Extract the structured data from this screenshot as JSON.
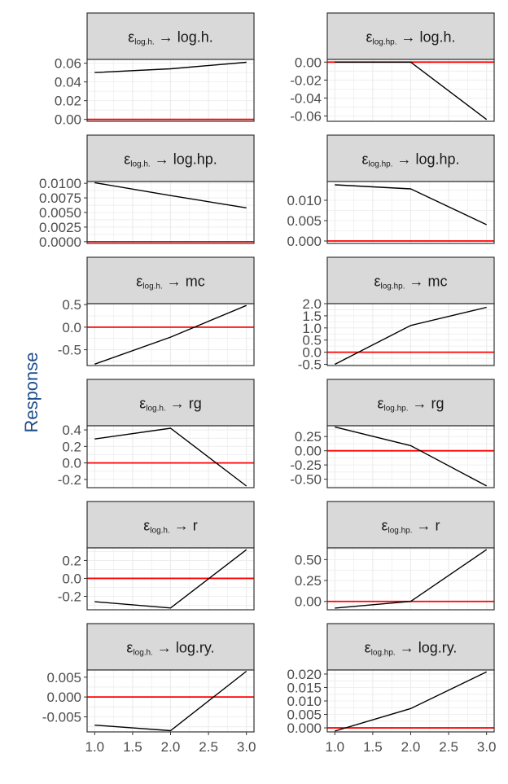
{
  "figure": {
    "ylabel": "Response",
    "x_ticks": [
      "1.0",
      "1.5",
      "2.0",
      "2.5",
      "3.0"
    ],
    "zero_line_color": "#ff0000",
    "line_color": "#000000",
    "strip_fill": "#d9d9d9"
  },
  "chart_data": [
    {
      "type": "line",
      "shock": "log.h.",
      "variable": "log.h.",
      "x": [
        1,
        2,
        3
      ],
      "values": [
        0.05,
        0.054,
        0.061
      ],
      "ylim": [
        -0.002,
        0.064
      ],
      "y_ticks": [
        0.0,
        0.02,
        0.04,
        0.06
      ],
      "y_tick_labels": [
        "0.00",
        "0.02",
        "0.04",
        "0.06"
      ],
      "grid": true
    },
    {
      "type": "line",
      "shock": "log.hp.",
      "variable": "log.h.",
      "x": [
        1,
        2,
        3
      ],
      "values": [
        0.0,
        0.0,
        -0.064
      ],
      "ylim": [
        -0.066,
        0.003
      ],
      "y_ticks": [
        0.0,
        -0.02,
        -0.04,
        -0.06
      ],
      "y_tick_labels": [
        "0.00",
        "-0.02",
        "-0.04",
        "-0.06"
      ],
      "grid": true
    },
    {
      "type": "line",
      "shock": "log.h.",
      "variable": "log.hp.",
      "x": [
        1,
        2,
        3
      ],
      "values": [
        0.0101,
        0.0079,
        0.0058
      ],
      "ylim": [
        -0.0003,
        0.0103
      ],
      "y_ticks": [
        0.0,
        0.0025,
        0.005,
        0.0075,
        0.01
      ],
      "y_tick_labels": [
        "0.0000",
        "0.0025",
        "0.0050",
        "0.0075",
        "0.0100"
      ],
      "grid": true
    },
    {
      "type": "line",
      "shock": "log.hp.",
      "variable": "log.hp.",
      "x": [
        1,
        2,
        3
      ],
      "values": [
        0.0138,
        0.0128,
        0.004
      ],
      "ylim": [
        -0.0006,
        0.0146
      ],
      "y_ticks": [
        0.0,
        0.005,
        0.01
      ],
      "y_tick_labels": [
        "0.000",
        "0.005",
        "0.010"
      ],
      "grid": true
    },
    {
      "type": "line",
      "shock": "log.h.",
      "variable": "mc",
      "x": [
        1,
        2,
        3
      ],
      "values": [
        -0.82,
        -0.22,
        0.48
      ],
      "ylim": [
        -0.85,
        0.52
      ],
      "y_ticks": [
        -0.5,
        0.0,
        0.5
      ],
      "y_tick_labels": [
        "-0.5",
        "0.0",
        "0.5"
      ],
      "grid": true
    },
    {
      "type": "line",
      "shock": "log.hp.",
      "variable": "mc",
      "x": [
        1,
        2,
        3
      ],
      "values": [
        -0.5,
        1.1,
        1.85
      ],
      "ylim": [
        -0.55,
        2.0
      ],
      "y_ticks": [
        -0.5,
        0.0,
        0.5,
        1.0,
        1.5,
        2.0
      ],
      "y_tick_labels": [
        "-0.5",
        "0.0",
        "0.5",
        "1.0",
        "1.5",
        "2.0"
      ],
      "grid": true
    },
    {
      "type": "line",
      "shock": "log.h.",
      "variable": "rg",
      "x": [
        1,
        2,
        3
      ],
      "values": [
        0.29,
        0.42,
        -0.28
      ],
      "ylim": [
        -0.3,
        0.45
      ],
      "y_ticks": [
        -0.2,
        0.0,
        0.2,
        0.4
      ],
      "y_tick_labels": [
        "-0.2",
        "0.0",
        "0.2",
        "0.4"
      ],
      "grid": true
    },
    {
      "type": "line",
      "shock": "log.hp.",
      "variable": "rg",
      "x": [
        1,
        2,
        3
      ],
      "values": [
        0.42,
        0.09,
        -0.62
      ],
      "ylim": [
        -0.65,
        0.44
      ],
      "y_ticks": [
        -0.5,
        -0.25,
        0.0,
        0.25
      ],
      "y_tick_labels": [
        "-0.50",
        "-0.25",
        "0.00",
        "0.25"
      ],
      "grid": true
    },
    {
      "type": "line",
      "shock": "log.h.",
      "variable": "r",
      "x": [
        1,
        2,
        3
      ],
      "values": [
        -0.26,
        -0.33,
        0.32
      ],
      "ylim": [
        -0.35,
        0.34
      ],
      "y_ticks": [
        -0.2,
        0.0,
        0.2
      ],
      "y_tick_labels": [
        "-0.2",
        "0.0",
        "0.2"
      ],
      "grid": true
    },
    {
      "type": "line",
      "shock": "log.hp.",
      "variable": "r",
      "x": [
        1,
        2,
        3
      ],
      "values": [
        -0.08,
        0.0,
        0.62
      ],
      "ylim": [
        -0.1,
        0.64
      ],
      "y_ticks": [
        0.0,
        0.25,
        0.5
      ],
      "y_tick_labels": [
        "0.00",
        "0.25",
        "0.50"
      ],
      "grid": true
    },
    {
      "type": "line",
      "shock": "log.h.",
      "variable": "log.ry.",
      "x": [
        1,
        2,
        3
      ],
      "values": [
        -0.0071,
        -0.0085,
        0.0065
      ],
      "ylim": [
        -0.0088,
        0.0068
      ],
      "y_ticks": [
        -0.005,
        0.0,
        0.005
      ],
      "y_tick_labels": [
        "-0.005",
        "0.000",
        "0.005"
      ],
      "grid": true
    },
    {
      "type": "line",
      "shock": "log.hp.",
      "variable": "log.ry.",
      "x": [
        1,
        2,
        3
      ],
      "values": [
        -0.0012,
        0.0072,
        0.0208
      ],
      "ylim": [
        -0.0015,
        0.0215
      ],
      "y_ticks": [
        0.0,
        0.005,
        0.01,
        0.015,
        0.02
      ],
      "y_tick_labels": [
        "0.000",
        "0.005",
        "0.010",
        "0.015",
        "0.020"
      ],
      "grid": true
    }
  ]
}
